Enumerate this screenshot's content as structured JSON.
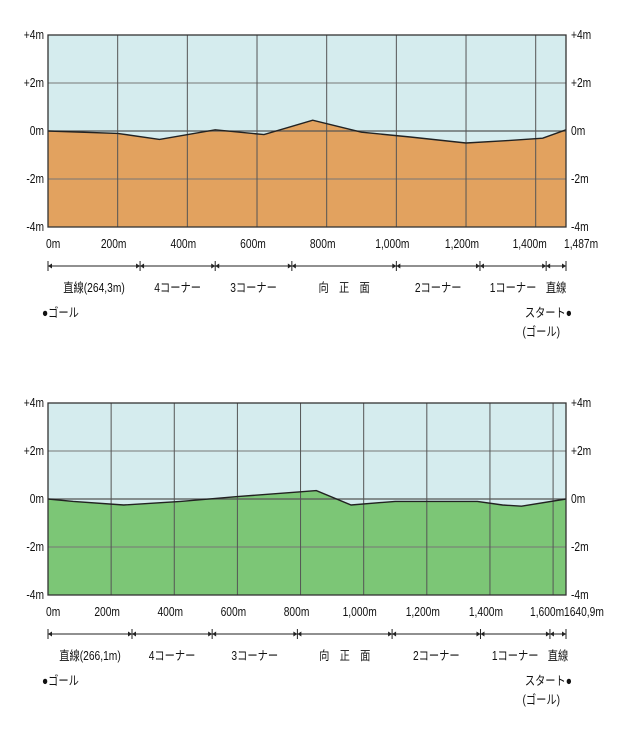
{
  "charts": [
    {
      "y_tick_labels": [
        "+4m",
        "+2m",
        "0m",
        "-2m",
        "-4m"
      ],
      "x_tick_labels": [
        "0m",
        "200m",
        "400m",
        "600m",
        "800m",
        "1,000m",
        "1,200m",
        "1,400m",
        "1,487m"
      ],
      "sections": [
        "直線(264,3m)",
        "4コーナー",
        "3コーナー",
        "向　正　面",
        "2コーナー",
        "1コーナー",
        "直線"
      ],
      "goal_label": "●ゴール",
      "start_label": "スタート●",
      "start_sub_label": "(ゴール)"
    },
    {
      "y_tick_labels": [
        "+4m",
        "+2m",
        "0m",
        "-2m",
        "-4m"
      ],
      "x_tick_labels": [
        "0m",
        "200m",
        "400m",
        "600m",
        "800m",
        "1,000m",
        "1,200m",
        "1,400m",
        "1,600m",
        "1640,9m"
      ],
      "sections": [
        "直線(266,1m)",
        "4コーナー",
        "3コーナー",
        "向　正　面",
        "2コーナー",
        "1コーナー",
        "直線"
      ],
      "goal_label": "●ゴール",
      "start_label": "スタート●",
      "start_sub_label": "(ゴール)"
    }
  ],
  "chart_data": [
    {
      "type": "area",
      "xlim": [
        0,
        1487
      ],
      "ylim": [
        -4,
        4
      ],
      "x_ticks": [
        0,
        200,
        400,
        600,
        800,
        1000,
        1200,
        1400,
        1487
      ],
      "y_ticks": [
        4,
        2,
        0,
        -2,
        -4
      ],
      "section_boundaries": [
        0,
        264.3,
        480,
        700,
        1000,
        1240,
        1430,
        1487
      ],
      "x": [
        0,
        200,
        320,
        480,
        620,
        760,
        900,
        1040,
        1200,
        1320,
        1420,
        1487
      ],
      "y": [
        0,
        -0.1,
        -0.35,
        0.05,
        -0.15,
        0.45,
        -0.05,
        -0.25,
        -0.5,
        -0.4,
        -0.3,
        0.05
      ],
      "fill_color": "#e2a25f",
      "sky_color": "#d5ecee",
      "grid": true
    },
    {
      "type": "area",
      "xlim": [
        0,
        1640.9
      ],
      "ylim": [
        -4,
        4
      ],
      "x_ticks": [
        0,
        200,
        400,
        600,
        800,
        1000,
        1200,
        1400,
        1600,
        1640.9
      ],
      "y_ticks": [
        4,
        2,
        0,
        -2,
        -4
      ],
      "section_boundaries": [
        0,
        266.1,
        520,
        790,
        1090,
        1370,
        1590,
        1640.9
      ],
      "x": [
        0,
        80,
        240,
        420,
        600,
        800,
        850,
        960,
        1100,
        1360,
        1440,
        1500,
        1640.9
      ],
      "y": [
        0,
        -0.1,
        -0.25,
        -0.1,
        0.1,
        0.3,
        0.35,
        -0.25,
        -0.1,
        -0.1,
        -0.25,
        -0.3,
        0
      ],
      "fill_color": "#7cc676",
      "sky_color": "#d5ecee",
      "grid": true
    }
  ]
}
